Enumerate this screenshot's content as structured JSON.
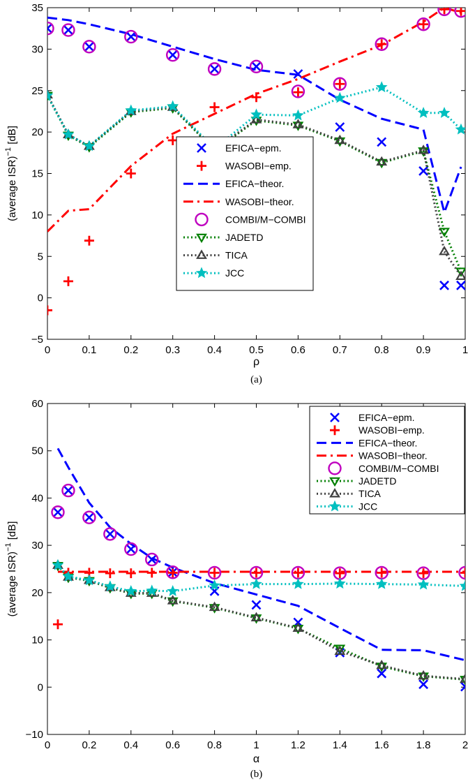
{
  "chart_data": [
    {
      "type": "line",
      "panel_label": "(a)",
      "xlabel": "ρ",
      "ylabel": "(average ISR)",
      "ylabel_sup": "−1",
      "ylabel_unit": " [dB]",
      "xlim": [
        0,
        1
      ],
      "ylim": [
        -5,
        35
      ],
      "xticks": [
        0,
        0.1,
        0.2,
        0.3,
        0.4,
        0.5,
        0.6,
        0.7,
        0.8,
        0.9,
        1
      ],
      "xtick_labels": [
        "0",
        "0.1",
        "0.2",
        "0.3",
        "0.4",
        "0.5",
        "0.6",
        "0.7",
        "0.8",
        "0.9",
        "1"
      ],
      "yticks": [
        -5,
        0,
        5,
        10,
        15,
        20,
        25,
        30,
        35
      ],
      "ytick_labels": [
        "−5",
        "0",
        "5",
        "10",
        "15",
        "20",
        "25",
        "30",
        "35"
      ],
      "grid": false,
      "legend_placement": "center-right",
      "series": [
        {
          "name": "EFICA−epm.",
          "style": "x",
          "color": "#0000ff",
          "x": [
            0,
            0.05,
            0.1,
            0.2,
            0.3,
            0.4,
            0.5,
            0.6,
            0.7,
            0.8,
            0.9,
            0.95,
            0.99
          ],
          "y": [
            32.5,
            32.3,
            30.3,
            31.5,
            29.3,
            27.6,
            27.9,
            27.0,
            20.6,
            18.8,
            15.3,
            1.5,
            1.5
          ]
        },
        {
          "name": "WASOBI−emp.",
          "style": "plus",
          "color": "#ff0000",
          "x": [
            0,
            0.05,
            0.1,
            0.2,
            0.3,
            0.4,
            0.5,
            0.6,
            0.7,
            0.8,
            0.9,
            0.95,
            0.99
          ],
          "y": [
            -1.5,
            2.0,
            6.9,
            15.0,
            19.0,
            23.0,
            24.2,
            24.8,
            25.8,
            30.6,
            33.0,
            34.8,
            34.6
          ]
        },
        {
          "name": "EFICA−theor.",
          "style": "dash",
          "color": "#0000ff",
          "x": [
            0,
            0.05,
            0.1,
            0.2,
            0.3,
            0.4,
            0.5,
            0.6,
            0.7,
            0.8,
            0.9,
            0.95,
            0.99
          ],
          "y": [
            33.8,
            33.5,
            33.0,
            31.8,
            30.3,
            28.8,
            27.5,
            26.9,
            23.9,
            21.6,
            20.3,
            10.3,
            15.8
          ]
        },
        {
          "name": "WASOBI−theor.",
          "style": "dashdot",
          "color": "#ff0000",
          "x": [
            0,
            0.05,
            0.1,
            0.2,
            0.3,
            0.4,
            0.5,
            0.6,
            0.7,
            0.8,
            0.9,
            0.95,
            0.99
          ],
          "y": [
            8.0,
            10.5,
            10.7,
            15.9,
            19.8,
            22.2,
            24.6,
            26.4,
            28.5,
            30.5,
            33.3,
            35.0,
            34.4
          ]
        },
        {
          "name": "COMBI/M−COMBI",
          "style": "circle",
          "color": "#bf00bf",
          "x": [
            0,
            0.05,
            0.1,
            0.2,
            0.3,
            0.4,
            0.5,
            0.6,
            0.7,
            0.8,
            0.9,
            0.95,
            0.99
          ],
          "y": [
            32.5,
            32.3,
            30.3,
            31.5,
            29.3,
            27.6,
            27.9,
            24.9,
            25.8,
            30.6,
            33.0,
            34.8,
            34.6
          ]
        },
        {
          "name": "JADETD",
          "style": "tri-down-dotted",
          "color": "#007f00",
          "x": [
            0,
            0.05,
            0.1,
            0.2,
            0.3,
            0.4,
            0.5,
            0.6,
            0.7,
            0.8,
            0.9,
            0.95,
            0.99
          ],
          "y": [
            24.4,
            19.6,
            18.2,
            22.4,
            22.9,
            17.8,
            21.4,
            20.8,
            18.9,
            16.3,
            17.7,
            8.0,
            3.2
          ]
        },
        {
          "name": "TICA",
          "style": "tri-up-dotted",
          "color": "#404040",
          "x": [
            0,
            0.05,
            0.1,
            0.2,
            0.3,
            0.4,
            0.5,
            0.6,
            0.7,
            0.8,
            0.9,
            0.95,
            0.99
          ],
          "y": [
            24.5,
            19.7,
            18.3,
            22.5,
            23.0,
            17.9,
            21.5,
            20.9,
            19.0,
            16.4,
            17.8,
            5.6,
            2.6
          ]
        },
        {
          "name": "JCC",
          "style": "star-dotted",
          "color": "#00bfbf",
          "x": [
            0,
            0.05,
            0.1,
            0.2,
            0.3,
            0.4,
            0.5,
            0.6,
            0.7,
            0.8,
            0.9,
            0.95,
            0.99
          ],
          "y": [
            24.4,
            19.7,
            18.3,
            22.6,
            23.1,
            18.0,
            22.1,
            22.0,
            24.1,
            25.4,
            22.3,
            22.3,
            20.3
          ]
        }
      ]
    },
    {
      "type": "line",
      "panel_label": "(b)",
      "xlabel": "α",
      "ylabel": "(average ISR)",
      "ylabel_sup": "−1",
      "ylabel_unit": " [dB]",
      "xlim": [
        0,
        2
      ],
      "ylim": [
        -10,
        60
      ],
      "xticks": [
        0,
        0.2,
        0.4,
        0.6,
        0.8,
        1,
        1.2,
        1.4,
        1.6,
        1.8,
        2
      ],
      "xtick_labels": [
        "0",
        "0.2",
        "0.4",
        "0.6",
        "0.8",
        "1",
        "1.2",
        "1.4",
        "1.6",
        "1.8",
        "2"
      ],
      "yticks": [
        -10,
        0,
        10,
        20,
        30,
        40,
        50,
        60
      ],
      "ytick_labels": [
        "−10",
        "0",
        "10",
        "20",
        "30",
        "40",
        "50",
        "60"
      ],
      "grid": false,
      "legend_placement": "top-right",
      "series": [
        {
          "name": "EFICA−epm.",
          "style": "x",
          "color": "#0000ff",
          "x": [
            0.05,
            0.1,
            0.2,
            0.3,
            0.4,
            0.5,
            0.6,
            0.8,
            1.0,
            1.2,
            1.4,
            1.6,
            1.8,
            2.0
          ],
          "y": [
            37.0,
            41.6,
            35.9,
            32.4,
            29.2,
            27.0,
            24.3,
            20.3,
            17.4,
            13.7,
            7.3,
            2.9,
            0.6,
            0.1
          ]
        },
        {
          "name": "WASOBI−emp.",
          "style": "plus",
          "color": "#ff0000",
          "x": [
            0.05,
            0.1,
            0.2,
            0.3,
            0.4,
            0.5,
            0.6,
            0.8,
            1.0,
            1.2,
            1.4,
            1.6,
            1.8,
            2.0
          ],
          "y": [
            13.3,
            24.2,
            24.2,
            24.1,
            24.1,
            24.2,
            24.2,
            24.2,
            24.2,
            24.2,
            24.1,
            24.2,
            24.1,
            24.2
          ]
        },
        {
          "name": "EFICA−theor.",
          "style": "dash",
          "color": "#0000ff",
          "x": [
            0.05,
            0.1,
            0.2,
            0.3,
            0.4,
            0.5,
            0.6,
            0.8,
            1.0,
            1.2,
            1.4,
            1.6,
            1.8,
            2.0
          ],
          "y": [
            50.5,
            46.5,
            39.0,
            33.8,
            30.3,
            27.3,
            25.3,
            22.0,
            19.6,
            17.2,
            12.5,
            7.9,
            7.8,
            5.7
          ]
        },
        {
          "name": "WASOBI−theor.",
          "style": "dashdot",
          "color": "#ff0000",
          "x": [
            0.05,
            0.1,
            0.2,
            0.3,
            0.4,
            0.5,
            0.6,
            0.8,
            1.0,
            1.2,
            1.4,
            1.6,
            1.8,
            2.0
          ],
          "y": [
            24.4,
            24.4,
            24.4,
            24.4,
            24.4,
            24.4,
            24.4,
            24.4,
            24.4,
            24.4,
            24.4,
            24.4,
            24.4,
            24.4
          ]
        },
        {
          "name": "COMBI/M−COMBI",
          "style": "circle",
          "color": "#bf00bf",
          "x": [
            0.05,
            0.1,
            0.2,
            0.3,
            0.4,
            0.5,
            0.6,
            0.8,
            1.0,
            1.2,
            1.4,
            1.6,
            1.8,
            2.0
          ],
          "y": [
            37.0,
            41.6,
            35.9,
            32.4,
            29.2,
            27.0,
            24.3,
            24.2,
            24.2,
            24.2,
            24.1,
            24.2,
            24.1,
            24.2
          ]
        },
        {
          "name": "JADETD",
          "style": "tri-down-dotted",
          "color": "#007f00",
          "x": [
            0.05,
            0.1,
            0.2,
            0.3,
            0.4,
            0.5,
            0.6,
            0.8,
            1.0,
            1.2,
            1.4,
            1.6,
            1.8,
            2.0
          ],
          "y": [
            25.7,
            23.2,
            22.5,
            21.0,
            19.8,
            19.8,
            18.2,
            16.8,
            14.6,
            12.4,
            8.2,
            4.4,
            2.3,
            1.6
          ]
        },
        {
          "name": "TICA",
          "style": "tri-up-dotted",
          "color": "#404040",
          "x": [
            0.05,
            0.1,
            0.2,
            0.3,
            0.4,
            0.5,
            0.6,
            0.8,
            1.0,
            1.2,
            1.4,
            1.6,
            1.8,
            2.0
          ],
          "y": [
            25.8,
            23.3,
            22.6,
            21.1,
            19.9,
            19.9,
            18.3,
            16.9,
            14.7,
            12.5,
            7.6,
            4.6,
            2.4,
            1.7
          ]
        },
        {
          "name": "JCC",
          "style": "star-dotted",
          "color": "#00bfbf",
          "x": [
            0.05,
            0.1,
            0.2,
            0.3,
            0.4,
            0.5,
            0.6,
            0.8,
            1.0,
            1.2,
            1.4,
            1.6,
            1.8,
            2.0
          ],
          "y": [
            25.8,
            23.4,
            22.6,
            21.3,
            20.3,
            20.4,
            20.3,
            21.5,
            21.8,
            21.8,
            21.9,
            21.8,
            21.7,
            21.4
          ]
        }
      ]
    }
  ]
}
